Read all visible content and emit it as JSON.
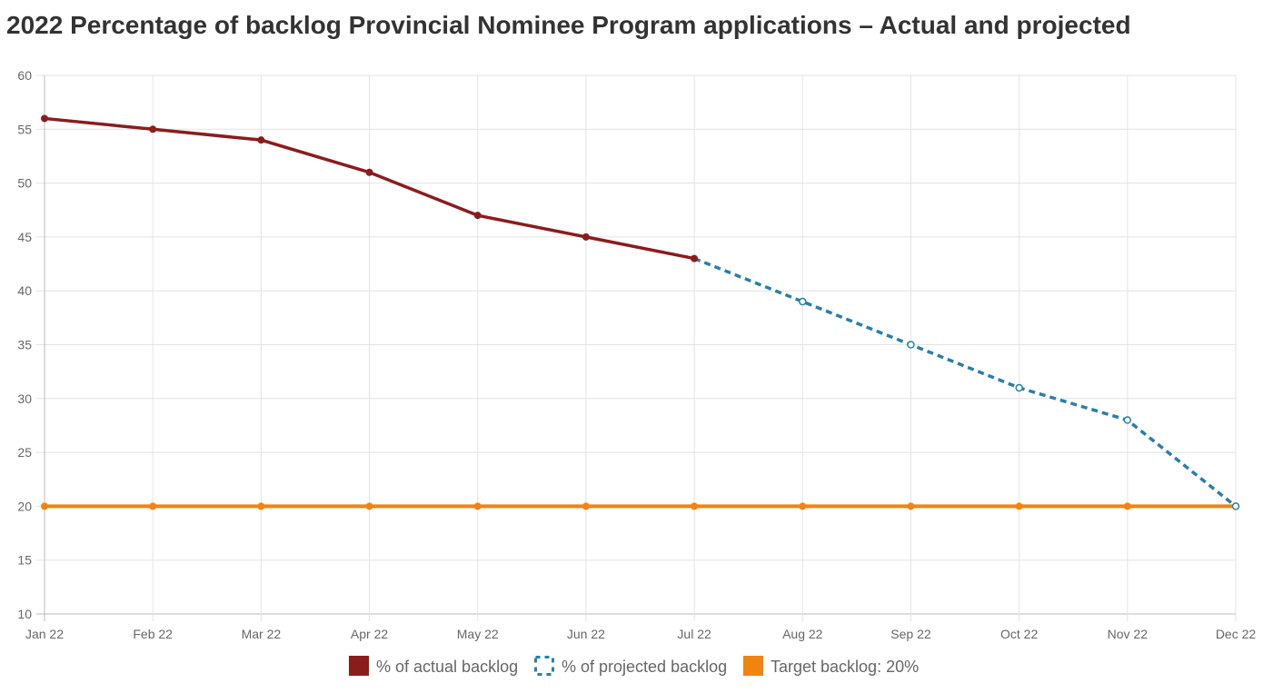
{
  "chart_data": {
    "type": "line",
    "title": "2022 Percentage of backlog Provincial Nominee Program applications – Actual and projected",
    "categories": [
      "Jan 22",
      "Feb 22",
      "Mar 22",
      "Apr 22",
      "May 22",
      "Jun 22",
      "Jul 22",
      "Aug 22",
      "Sep 22",
      "Oct 22",
      "Nov 22",
      "Dec 22"
    ],
    "ylim": [
      10,
      60
    ],
    "yticks": [
      10,
      15,
      20,
      25,
      30,
      35,
      40,
      45,
      50,
      55,
      60
    ],
    "grid": true,
    "legend_position": "bottom",
    "series": [
      {
        "name": "% of actual backlog",
        "color": "#8b1c1c",
        "style": "solid",
        "marker": "filled",
        "values": [
          56,
          55,
          54,
          51,
          47,
          45,
          43,
          null,
          null,
          null,
          null,
          null
        ]
      },
      {
        "name": "% of projected backlog",
        "color": "#2a7fa8",
        "style": "dashed",
        "marker": "hollow",
        "values": [
          null,
          null,
          null,
          null,
          null,
          null,
          43,
          39,
          35,
          31,
          28,
          20
        ]
      },
      {
        "name": "Target backlog: 20%",
        "color": "#f0840e",
        "style": "solid",
        "marker": "filled",
        "values": [
          20,
          20,
          20,
          20,
          20,
          20,
          20,
          20,
          20,
          20,
          20,
          20
        ]
      }
    ]
  }
}
